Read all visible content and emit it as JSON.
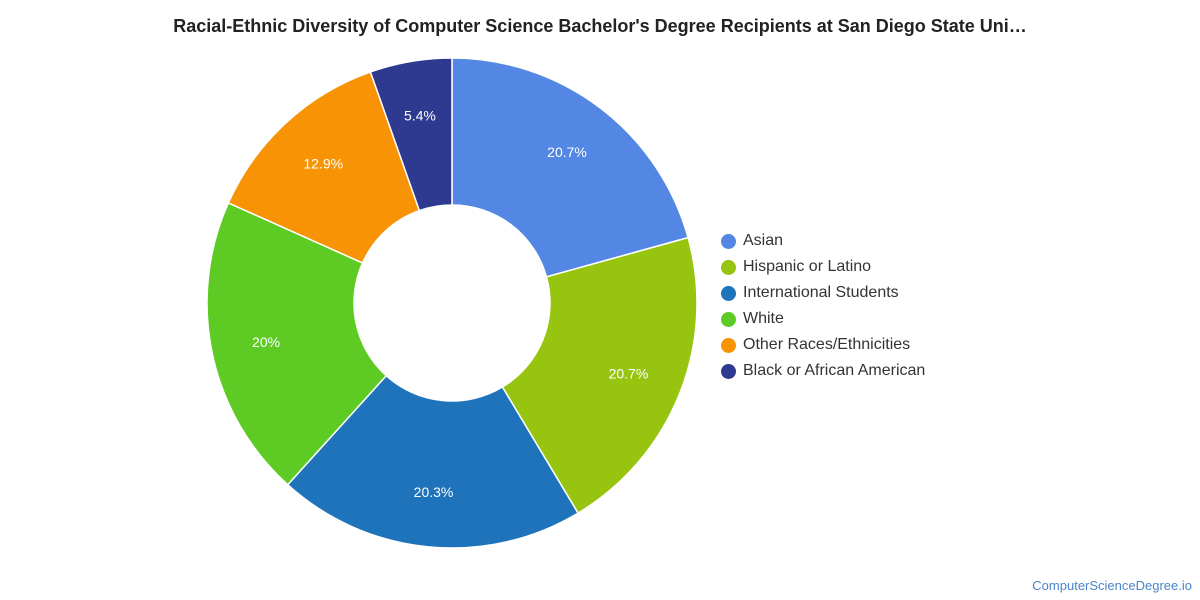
{
  "chart_data": {
    "type": "pie",
    "title": "Racial-Ethnic Diversity of Computer Science Bachelor's Degree Recipients at San Diego State Uni…",
    "donut": true,
    "legend_position": "right",
    "slices": [
      {
        "name": "Asian",
        "value": 20.7,
        "label": "20.7%",
        "color": "#5387e3"
      },
      {
        "name": "Hispanic or Latino",
        "value": 20.7,
        "label": "20.7%",
        "color": "#97c40f"
      },
      {
        "name": "International Students",
        "value": 20.3,
        "label": "20.3%",
        "color": "#1f73ba"
      },
      {
        "name": "White",
        "value": 20.0,
        "label": "20%",
        "color": "#5ecb24"
      },
      {
        "name": "Other Races/Ethnicities",
        "value": 12.9,
        "label": "12.9%",
        "color": "#f79305"
      },
      {
        "name": "Black or African American",
        "value": 5.4,
        "label": "5.4%",
        "color": "#2d3a8f"
      }
    ]
  },
  "source_text": "ComputerScienceDegree.io"
}
